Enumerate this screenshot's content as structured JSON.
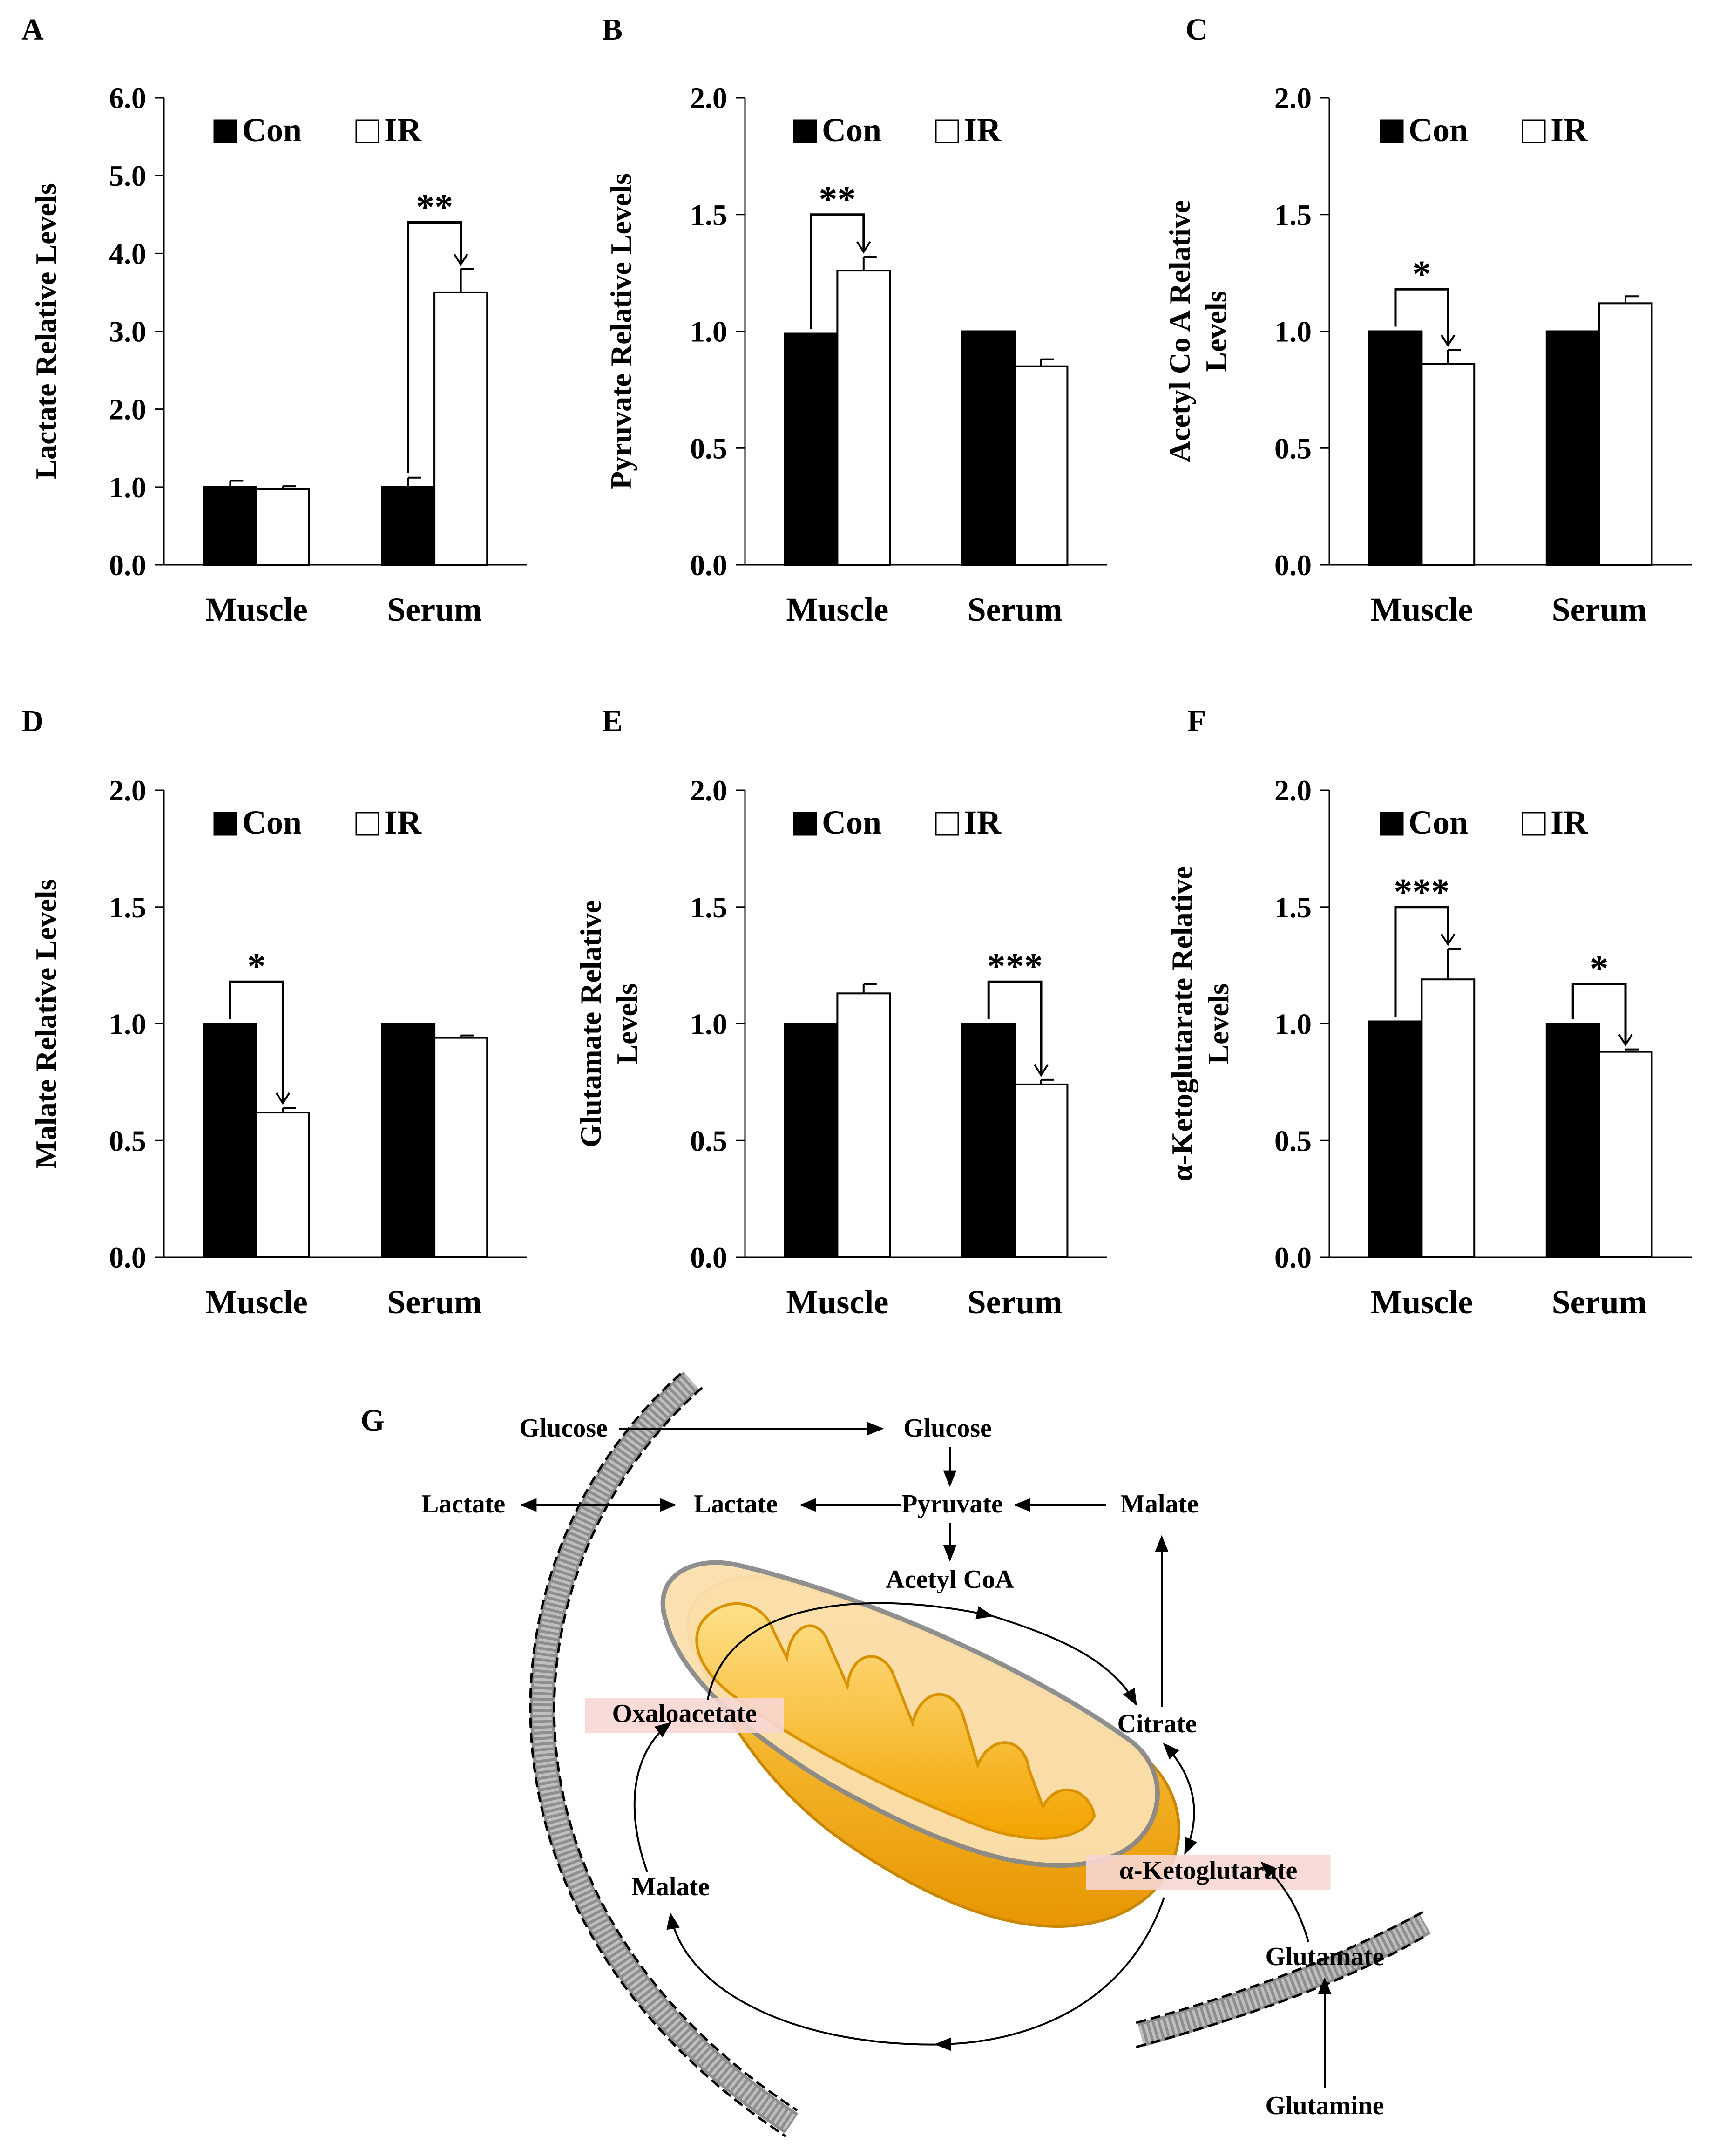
{
  "legend": {
    "con": "Con",
    "ir": "IR"
  },
  "colors": {
    "con": "#000000",
    "ir": "#ffffff",
    "mito_outer": "#f5a800",
    "mito_inner": "#f9c24a",
    "highlight": "#f7d6d3",
    "membrane": "#9a9a9a"
  },
  "chart_data": [
    {
      "panel": "A",
      "type": "bar",
      "ylabel": "Lactate Relative Levels",
      "categories": [
        "Muscle",
        "Serum"
      ],
      "ylim": [
        0,
        6
      ],
      "yticks": [
        "0.0",
        "1.0",
        "2.0",
        "3.0",
        "4.0",
        "5.0",
        "6.0"
      ],
      "ystep": 1,
      "series": [
        {
          "name": "Con",
          "values": [
            1.0,
            1.0
          ],
          "errors": [
            0.08,
            0.12
          ]
        },
        {
          "name": "IR",
          "values": [
            0.97,
            3.5
          ],
          "errors": [
            0.04,
            0.3
          ]
        }
      ],
      "significance": [
        {
          "category": 1,
          "label": "**",
          "bracket_y": 4.4
        }
      ]
    },
    {
      "panel": "B",
      "type": "bar",
      "ylabel": "Pyruvate Relative Levels",
      "categories": [
        "Muscle",
        "Serum"
      ],
      "ylim": [
        0,
        2
      ],
      "yticks": [
        "0.0",
        "0.5",
        "1.0",
        "1.5",
        "2.0"
      ],
      "ystep": 0.5,
      "series": [
        {
          "name": "Con",
          "values": [
            0.99,
            1.0
          ],
          "errors": [
            0,
            0
          ]
        },
        {
          "name": "IR",
          "values": [
            1.26,
            0.85
          ],
          "errors": [
            0.06,
            0.03
          ]
        }
      ],
      "significance": [
        {
          "category": 0,
          "label": "**",
          "bracket_y": 1.5
        }
      ]
    },
    {
      "panel": "C",
      "type": "bar",
      "ylabel": "Acetyl Co A Relative Levels",
      "categories": [
        "Muscle",
        "Serum"
      ],
      "ylim": [
        0,
        2
      ],
      "yticks": [
        "0.0",
        "0.5",
        "1.0",
        "1.5",
        "2.0"
      ],
      "ystep": 0.5,
      "series": [
        {
          "name": "Con",
          "values": [
            1.0,
            1.0
          ],
          "errors": [
            0,
            0
          ]
        },
        {
          "name": "IR",
          "values": [
            0.86,
            1.12
          ],
          "errors": [
            0.06,
            0.03
          ]
        }
      ],
      "significance": [
        {
          "category": 0,
          "label": "*",
          "bracket_y": 1.18
        }
      ]
    },
    {
      "panel": "D",
      "type": "bar",
      "ylabel": "Malate Relative Levels",
      "categories": [
        "Muscle",
        "Serum"
      ],
      "ylim": [
        0,
        2
      ],
      "yticks": [
        "0.0",
        "0.5",
        "1.0",
        "1.5",
        "2.0"
      ],
      "ystep": 0.5,
      "series": [
        {
          "name": "Con",
          "values": [
            1.0,
            1.0
          ],
          "errors": [
            0,
            0
          ]
        },
        {
          "name": "IR",
          "values": [
            0.62,
            0.94
          ],
          "errors": [
            0.02,
            0.01
          ]
        }
      ],
      "significance": [
        {
          "category": 0,
          "label": "*",
          "bracket_y": 1.18
        }
      ]
    },
    {
      "panel": "E",
      "type": "bar",
      "ylabel": "Glutamate Relative Levels",
      "categories": [
        "Muscle",
        "Serum"
      ],
      "ylim": [
        0,
        2
      ],
      "yticks": [
        "0.0",
        "0.5",
        "1.0",
        "1.5",
        "2.0"
      ],
      "ystep": 0.5,
      "series": [
        {
          "name": "Con",
          "values": [
            1.0,
            1.0
          ],
          "errors": [
            0,
            0
          ]
        },
        {
          "name": "IR",
          "values": [
            1.13,
            0.74
          ],
          "errors": [
            0.04,
            0.02
          ]
        }
      ],
      "significance": [
        {
          "category": 1,
          "label": "***",
          "bracket_y": 1.18
        }
      ]
    },
    {
      "panel": "F",
      "type": "bar",
      "ylabel": "α-Ketoglutarate Relative Levels",
      "categories": [
        "Muscle",
        "Serum"
      ],
      "ylim": [
        0,
        2
      ],
      "yticks": [
        "0.0",
        "0.5",
        "1.0",
        "1.5",
        "2.0"
      ],
      "ystep": 0.5,
      "series": [
        {
          "name": "Con",
          "values": [
            1.01,
            1.0
          ],
          "errors": [
            0,
            0
          ]
        },
        {
          "name": "IR",
          "values": [
            1.19,
            0.88
          ],
          "errors": [
            0.13,
            0.01
          ]
        }
      ],
      "significance": [
        {
          "category": 0,
          "label": "***",
          "bracket_y": 1.5
        },
        {
          "category": 1,
          "label": "*",
          "bracket_y": 1.17
        }
      ]
    }
  ],
  "diagram": {
    "panel": "G",
    "labels": {
      "glucose_out": "Glucose",
      "glucose_in": "Glucose",
      "lactate_out": "Lactate",
      "lactate_in": "Lactate",
      "pyruvate": "Pyruvate",
      "malate_cyto": "Malate",
      "acetyl_coa": "Acetyl CoA",
      "oxaloacetate": "Oxaloacetate",
      "citrate": "Citrate",
      "malate_mito": "Malate",
      "a_ketoglutarate": "α-Ketoglutarate",
      "glutamate": "Glutamate",
      "glutamine": "Glutamine"
    }
  }
}
